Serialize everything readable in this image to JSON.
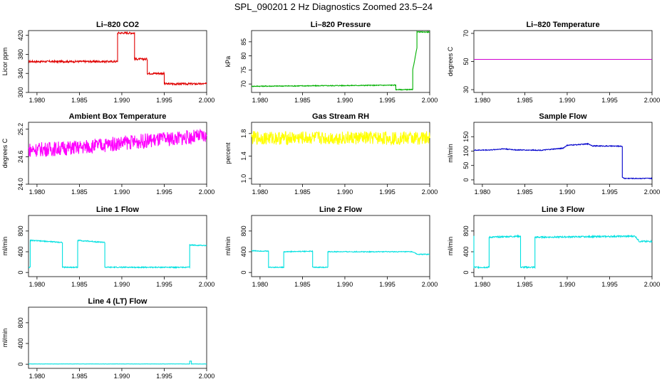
{
  "page_title": "SPL_090201  2 Hz Diagnostics Zoomed 23.5–24",
  "chart_data": [
    {
      "id": "co2",
      "type": "line",
      "title": "Li–820 CO2",
      "ylabel": "Licor ppm",
      "color": "#e00000",
      "xlim": [
        1.979,
        2.0
      ],
      "ylim": [
        300,
        430
      ],
      "x_ticks": [
        "1.980",
        "1.985",
        "1.990",
        "1.995",
        "2.000"
      ],
      "y_ticks": [
        300,
        340,
        380,
        420
      ],
      "series": [
        {
          "x": [
            1.979,
            1.9895,
            1.9895,
            1.9915,
            1.9915,
            1.993,
            1.993,
            1.995,
            1.995,
            2.0
          ],
          "y": [
            365,
            365,
            425,
            425,
            370,
            370,
            340,
            340,
            318,
            318
          ],
          "noise": 2
        }
      ]
    },
    {
      "id": "pressure",
      "type": "line",
      "title": "Li–820 Pressure",
      "ylabel": "kPa",
      "color": "#00b000",
      "xlim": [
        1.979,
        2.0
      ],
      "ylim": [
        67,
        89
      ],
      "x_ticks": [
        "1.980",
        "1.985",
        "1.990",
        "1.995",
        "2.000"
      ],
      "y_ticks": [
        70,
        75,
        80,
        85
      ],
      "series": [
        {
          "x": [
            1.979,
            1.992,
            1.996,
            1.996,
            1.998,
            1.998,
            1.9985,
            1.9985,
            2.0
          ],
          "y": [
            69.2,
            69.5,
            69.6,
            68,
            68,
            75,
            83,
            88.5,
            88.5
          ],
          "noise": 0.15
        }
      ]
    },
    {
      "id": "temp",
      "type": "line",
      "title": "Li–820 Temperature",
      "ylabel": "degrees C",
      "color": "#d000d0",
      "xlim": [
        1.979,
        2.0
      ],
      "ylim": [
        28,
        72
      ],
      "x_ticks": [
        "1.980",
        "1.985",
        "1.990",
        "1.995",
        "2.000"
      ],
      "y_ticks": [
        30,
        50,
        70
      ],
      "series": [
        {
          "x": [
            1.979,
            2.0
          ],
          "y": [
            51.5,
            51.5
          ],
          "noise": 0
        }
      ]
    },
    {
      "id": "ambient",
      "type": "line",
      "title": "Ambient Box Temperature",
      "ylabel": "degrees C",
      "color": "#ff00ff",
      "xlim": [
        1.979,
        2.0
      ],
      "ylim": [
        24.0,
        25.35
      ],
      "x_ticks": [
        "1.980",
        "1.985",
        "1.990",
        "1.995",
        "2.000"
      ],
      "y_ticks": [
        "24.0",
        "24.6",
        "25.2"
      ],
      "series": [
        {
          "x": [
            1.979,
            1.985,
            1.99,
            1.995,
            2.0
          ],
          "y": [
            24.75,
            24.8,
            24.9,
            24.98,
            25.05
          ],
          "noise": 0.16
        }
      ]
    },
    {
      "id": "rh",
      "type": "line",
      "title": "Gas Stream RH",
      "ylabel": "percent",
      "color": "#ffff00",
      "xlim": [
        1.979,
        2.0
      ],
      "ylim": [
        0.9,
        2.0
      ],
      "x_ticks": [
        "1.980",
        "1.985",
        "1.990",
        "1.995",
        "2.000"
      ],
      "y_ticks": [
        "1.0",
        "1.4",
        "1.8"
      ],
      "series": [
        {
          "x": [
            1.979,
            2.0
          ],
          "y": [
            1.72,
            1.72
          ],
          "noise": 0.12
        }
      ]
    },
    {
      "id": "sampleflow",
      "type": "line",
      "title": "Sample Flow",
      "ylabel": "ml/min",
      "color": "#0000cc",
      "xlim": [
        1.979,
        2.0
      ],
      "ylim": [
        -15,
        200
      ],
      "x_ticks": [
        "1.980",
        "1.985",
        "1.990",
        "1.995",
        "2.000"
      ],
      "y_ticks": [
        0,
        50,
        100,
        150
      ],
      "series": [
        {
          "x": [
            1.979,
            1.981,
            1.9825,
            1.984,
            1.987,
            1.9895,
            1.99,
            1.9925,
            1.993,
            1.9965,
            1.9965,
            1.9968,
            2.0
          ],
          "y": [
            103,
            104,
            108,
            104,
            103,
            110,
            120,
            125,
            118,
            117,
            8,
            5,
            5
          ],
          "noise": 1.5
        }
      ]
    },
    {
      "id": "line1",
      "type": "line",
      "title": "Line 1 Flow",
      "ylabel": "ml/min",
      "color": "#00e0e0",
      "xlim": [
        1.979,
        2.0
      ],
      "ylim": [
        -80,
        1100
      ],
      "x_ticks": [
        "1.980",
        "1.985",
        "1.990",
        "1.995",
        "2.000"
      ],
      "y_ticks": [
        0,
        400,
        800
      ],
      "series": [
        {
          "x": [
            1.979,
            1.9792,
            1.9792,
            1.983,
            1.983,
            1.9848,
            1.9848,
            1.988,
            1.988,
            1.998,
            1.998,
            2.0
          ],
          "y": [
            100,
            100,
            620,
            580,
            100,
            100,
            620,
            580,
            100,
            100,
            530,
            520
          ],
          "noise": 10
        }
      ]
    },
    {
      "id": "line2",
      "type": "line",
      "title": "Line 2 Flow",
      "ylabel": "ml/min",
      "color": "#00e0e0",
      "xlim": [
        1.979,
        2.0
      ],
      "ylim": [
        -80,
        1100
      ],
      "x_ticks": [
        "1.980",
        "1.985",
        "1.990",
        "1.995",
        "2.000"
      ],
      "y_ticks": [
        0,
        400,
        800
      ],
      "series": [
        {
          "x": [
            1.979,
            1.981,
            1.981,
            1.9828,
            1.9828,
            1.9862,
            1.9862,
            1.988,
            1.988,
            1.998,
            1.9985,
            2.0
          ],
          "y": [
            420,
            410,
            100,
            100,
            400,
            410,
            100,
            100,
            400,
            400,
            350,
            350
          ],
          "noise": 8
        }
      ]
    },
    {
      "id": "line3",
      "type": "line",
      "title": "Line 3 Flow",
      "ylabel": "ml/min",
      "color": "#00e0e0",
      "xlim": [
        1.979,
        2.0
      ],
      "ylim": [
        -80,
        1100
      ],
      "x_ticks": [
        "1.980",
        "1.985",
        "1.990",
        "1.995",
        "2.000"
      ],
      "y_ticks": [
        0,
        400,
        800
      ],
      "series": [
        {
          "x": [
            1.979,
            1.979,
            1.979,
            1.9808,
            1.9808,
            1.9845,
            1.9845,
            1.9862,
            1.9862,
            1.998,
            1.9985,
            2.0
          ],
          "y": [
            700,
            700,
            100,
            100,
            680,
            700,
            100,
            100,
            680,
            700,
            600,
            600
          ],
          "noise": 14
        }
      ]
    },
    {
      "id": "line4",
      "type": "line",
      "title": "Line 4 (LT) Flow",
      "ylabel": "ml/min",
      "color": "#00e0e0",
      "xlim": [
        1.979,
        2.0
      ],
      "ylim": [
        -80,
        1100
      ],
      "x_ticks": [
        "1.980",
        "1.985",
        "1.990",
        "1.995",
        "2.000"
      ],
      "y_ticks": [
        0,
        400,
        800
      ],
      "series": [
        {
          "x": [
            1.979,
            1.998,
            1.998,
            1.9982,
            1.9982,
            2.0
          ],
          "y": [
            5,
            5,
            60,
            60,
            5,
            5
          ],
          "noise": 2
        }
      ]
    }
  ]
}
